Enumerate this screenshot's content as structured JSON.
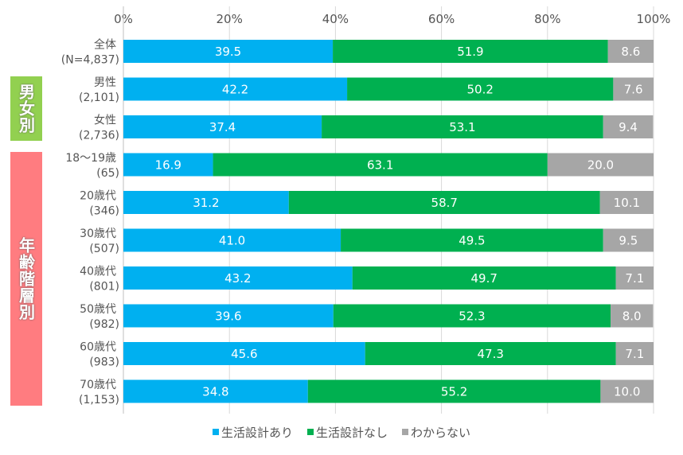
{
  "chart_data": {
    "type": "bar",
    "orientation": "horizontal",
    "stacked": true,
    "xlim": [
      0,
      100
    ],
    "xticks": [
      "0%",
      "20%",
      "40%",
      "60%",
      "80%",
      "100%"
    ],
    "categories": [
      {
        "label": "全体",
        "sub": "(N=4,837)"
      },
      {
        "label": "男性",
        "sub": "(2,101)"
      },
      {
        "label": "女性",
        "sub": "(2,736)"
      },
      {
        "label": "18～19歳",
        "sub": "(65)"
      },
      {
        "label": "20歳代",
        "sub": "(346)"
      },
      {
        "label": "30歳代",
        "sub": "(507)"
      },
      {
        "label": "40歳代",
        "sub": "(801)"
      },
      {
        "label": "50歳代",
        "sub": "(982)"
      },
      {
        "label": "60歳代",
        "sub": "(983)"
      },
      {
        "label": "70歳代",
        "sub": "(1,153)"
      }
    ],
    "series": [
      {
        "name": "生活設計あり",
        "color": "#00B0F0",
        "values": [
          "39.5",
          "42.2",
          "37.4",
          "16.9",
          "31.2",
          "41.0",
          "43.2",
          "39.6",
          "45.6",
          "34.8"
        ]
      },
      {
        "name": "生活設計なし",
        "color": "#00B050",
        "values": [
          "51.9",
          "50.2",
          "53.1",
          "63.1",
          "58.7",
          "49.5",
          "49.7",
          "52.3",
          "47.3",
          "55.2"
        ]
      },
      {
        "name": "わからない",
        "color": "#A6A6A6",
        "values": [
          "8.6",
          "7.6",
          "9.4",
          "20.0",
          "10.1",
          "9.5",
          "7.1",
          "8.0",
          "7.1",
          "10.0"
        ]
      }
    ],
    "groups": [
      {
        "label": "男女別",
        "color": "#92D050",
        "rows": [
          1,
          2
        ]
      },
      {
        "label": "年齢階層別",
        "color": "#FF7C80",
        "rows": [
          3,
          9
        ]
      }
    ],
    "legend": "bottom"
  }
}
